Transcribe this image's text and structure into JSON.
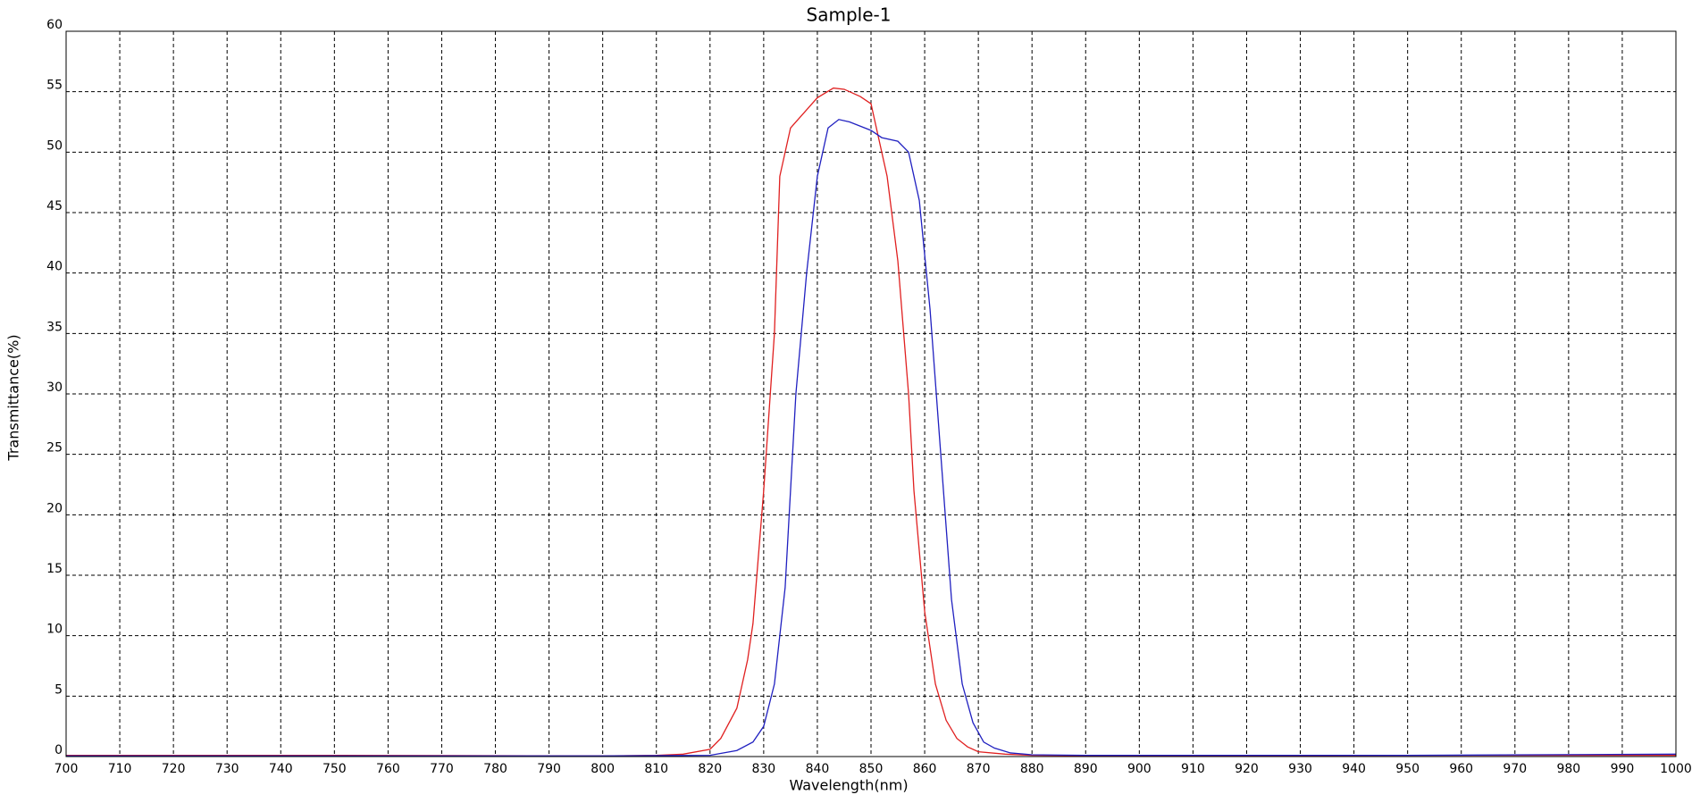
{
  "chart_data": {
    "type": "line",
    "title": "Sample-1",
    "x_label": "Wavelength(nm)",
    "y_label": "Transmittance(%)",
    "xlim": [
      700,
      1000
    ],
    "xticks": [
      700,
      710,
      720,
      730,
      740,
      750,
      760,
      770,
      780,
      790,
      800,
      810,
      820,
      830,
      840,
      850,
      860,
      870,
      880,
      890,
      900,
      910,
      920,
      930,
      940,
      950,
      960,
      970,
      980,
      990,
      1000
    ],
    "ylim": [
      0,
      60
    ],
    "yticks": [
      0,
      5,
      10,
      15,
      20,
      25,
      30,
      35,
      40,
      45,
      50,
      55,
      60
    ],
    "grid": true,
    "series": [
      {
        "color": "#e02020",
        "x": [
          700,
          750,
          800,
          810,
          815,
          820,
          822,
          825,
          827,
          828,
          830,
          832,
          833,
          835,
          838,
          840,
          843,
          845,
          848,
          850,
          853,
          855,
          857,
          858,
          860,
          862,
          864,
          866,
          868,
          870,
          875,
          880,
          900,
          950,
          1000
        ],
        "values": [
          0.1,
          0.1,
          0.05,
          0.1,
          0.2,
          0.6,
          1.5,
          4,
          8,
          11,
          22,
          35,
          48,
          52,
          53.5,
          54.5,
          55.3,
          55.2,
          54.6,
          54,
          48,
          41,
          30,
          22,
          12,
          6,
          3,
          1.5,
          0.8,
          0.4,
          0.2,
          0.1,
          0.05,
          0.1,
          0.1
        ]
      },
      {
        "color": "#2020c0",
        "x": [
          700,
          750,
          800,
          820,
          825,
          828,
          830,
          832,
          834,
          836,
          838,
          840,
          842,
          844,
          846,
          850,
          852,
          855,
          857,
          859,
          861,
          863,
          865,
          867,
          869,
          871,
          873,
          876,
          880,
          890,
          950,
          1000
        ],
        "values": [
          0.05,
          0.05,
          0.05,
          0.1,
          0.5,
          1.2,
          2.5,
          6,
          14,
          30,
          40,
          48,
          52,
          52.7,
          52.5,
          51.8,
          51.2,
          50.9,
          50,
          46,
          37,
          25,
          13,
          6,
          2.8,
          1.2,
          0.7,
          0.3,
          0.15,
          0.1,
          0.1,
          0.2
        ]
      }
    ]
  }
}
